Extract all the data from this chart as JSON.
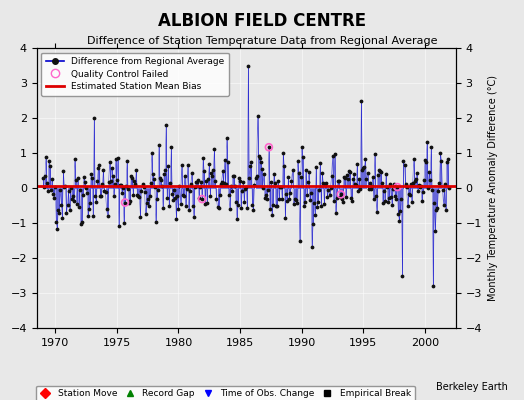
{
  "title": "ALBION FIELD CENTRE",
  "subtitle": "Difference of Station Temperature Data from Regional Average",
  "ylabel": "Monthly Temperature Anomaly Difference (°C)",
  "berkeley_earth_label": "Berkeley Earth",
  "xlim": [
    1968.5,
    2002.5
  ],
  "ylim": [
    -4,
    4
  ],
  "yticks": [
    -4,
    -3,
    -2,
    -1,
    0,
    1,
    2,
    3,
    4
  ],
  "xticks": [
    1970,
    1975,
    1980,
    1985,
    1990,
    1995,
    2000
  ],
  "bias_line_y": 0.05,
  "bias_line_color": "#dd0000",
  "line_color": "#0000cc",
  "dot_color": "#111111",
  "qc_fail_color": "#ff66cc",
  "background_color": "#e8e8e8",
  "seed": 42
}
